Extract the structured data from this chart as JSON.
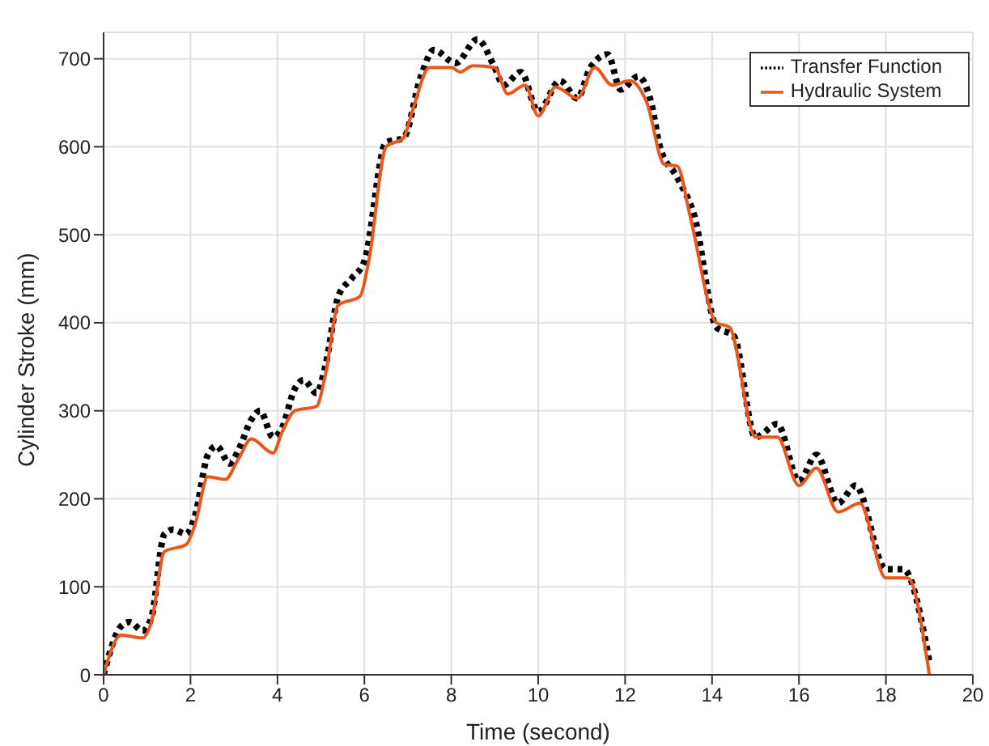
{
  "chart_data": {
    "type": "line",
    "xlabel": "Time (second)",
    "ylabel": "Cylinder Stroke (mm)",
    "xlim": [
      0,
      20
    ],
    "xticks": [
      0,
      2,
      4,
      6,
      8,
      10,
      12,
      14,
      16,
      18,
      20
    ],
    "ylim": [
      0,
      730
    ],
    "yticks": [
      0,
      100,
      200,
      300,
      400,
      500,
      600,
      700
    ],
    "grid": true,
    "legend": "top right",
    "marker": "none",
    "series": [
      {
        "name": "Transfer Function",
        "color": "#000000",
        "line_style": "dotted",
        "x": [
          0,
          0.4,
          0.6,
          0.9,
          1.1,
          1.4,
          1.6,
          1.9,
          2.1,
          2.4,
          2.6,
          2.9,
          3.1,
          3.4,
          3.6,
          3.9,
          4.1,
          4.4,
          4.6,
          4.9,
          5.1,
          5.4,
          5.7,
          6.0,
          6.5,
          6.9,
          7.3,
          7.6,
          8.1,
          8.6,
          9.0,
          9.2,
          9.6,
          10.0,
          10.5,
          10.9,
          11.2,
          11.6,
          11.9,
          12.3,
          12.6,
          12.8,
          13.2,
          13.6,
          14.1,
          14.5,
          15.0,
          15.5,
          16.0,
          16.4,
          16.9,
          17.3,
          18.0,
          18.4,
          19.0
        ],
        "values": [
          0,
          55,
          60,
          50,
          65,
          160,
          165,
          160,
          180,
          250,
          260,
          240,
          255,
          290,
          300,
          270,
          280,
          325,
          335,
          320,
          350,
          430,
          450,
          470,
          605,
          610,
          680,
          710,
          695,
          722,
          690,
          670,
          685,
          640,
          675,
          655,
          690,
          705,
          665,
          680,
          650,
          600,
          565,
          520,
          395,
          385,
          270,
          285,
          220,
          250,
          195,
          215,
          120,
          120,
          15
        ]
      },
      {
        "name": "Hydraulic System",
        "color": "#e8571c",
        "line_style": "solid",
        "x": [
          0,
          0.4,
          0.9,
          1.1,
          1.4,
          1.9,
          2.1,
          2.4,
          2.8,
          3.1,
          3.4,
          3.9,
          4.1,
          4.4,
          4.9,
          5.1,
          5.4,
          5.9,
          6.1,
          6.5,
          6.9,
          7.1,
          7.5,
          8.0,
          8.2,
          8.5,
          9.0,
          9.3,
          9.7,
          10.0,
          10.4,
          10.9,
          11.3,
          11.7,
          12.1,
          12.5,
          12.9,
          13.2,
          13.5,
          14.1,
          14.4,
          15.0,
          15.5,
          16.0,
          16.4,
          16.9,
          17.4,
          18.0,
          18.5,
          19.0
        ],
        "values": [
          0,
          45,
          42,
          60,
          140,
          148,
          170,
          225,
          222,
          245,
          268,
          252,
          275,
          300,
          305,
          340,
          420,
          430,
          470,
          600,
          610,
          640,
          690,
          690,
          685,
          692,
          690,
          660,
          670,
          635,
          668,
          655,
          690,
          670,
          675,
          650,
          580,
          578,
          520,
          400,
          395,
          270,
          270,
          215,
          235,
          185,
          195,
          110,
          110,
          0
        ]
      }
    ]
  }
}
